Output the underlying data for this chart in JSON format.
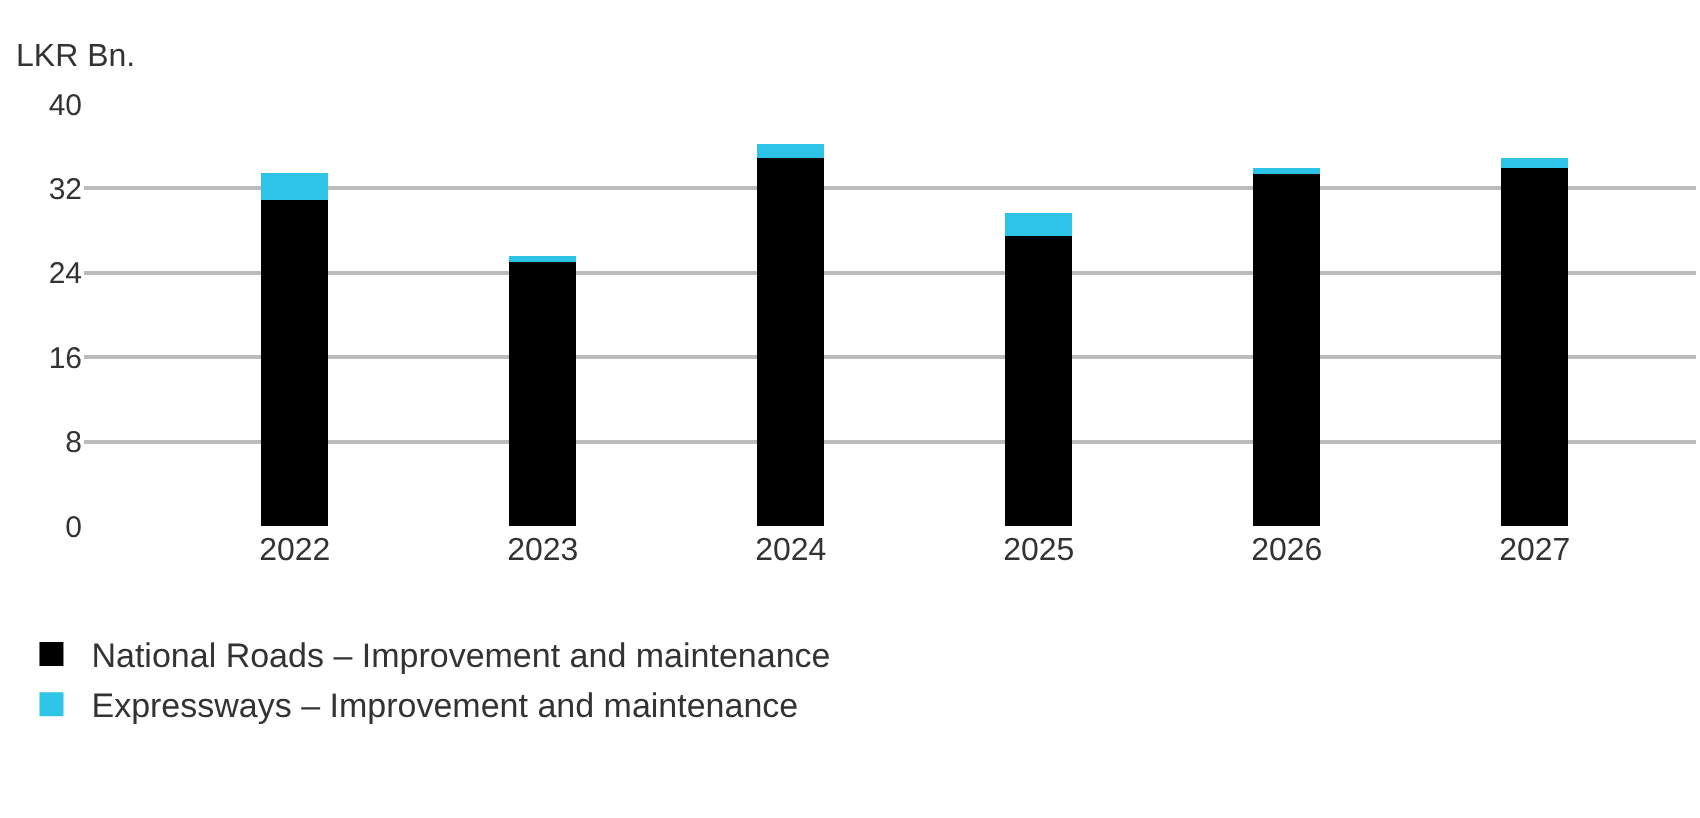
{
  "chart_data": {
    "type": "bar",
    "stacked": true,
    "ylabel": "LKR Bn.",
    "categories": [
      "2022",
      "2023",
      "2024",
      "2025",
      "2026",
      "2027"
    ],
    "series": [
      {
        "name": "National Roads – Improvement and maintenance",
        "color": "#000000",
        "values": [
          30.9,
          25.0,
          34.9,
          27.5,
          33.4,
          33.9
        ]
      },
      {
        "name": "Expressways – Improvement and maintenance",
        "color": "#2ec4e8",
        "values": [
          2.6,
          0.6,
          1.3,
          2.2,
          0.5,
          1.0
        ]
      }
    ],
    "ylim": [
      0,
      40
    ],
    "yticks": [
      0,
      8,
      16,
      24,
      32,
      40
    ],
    "grid": "y",
    "legend": "bottom left"
  }
}
